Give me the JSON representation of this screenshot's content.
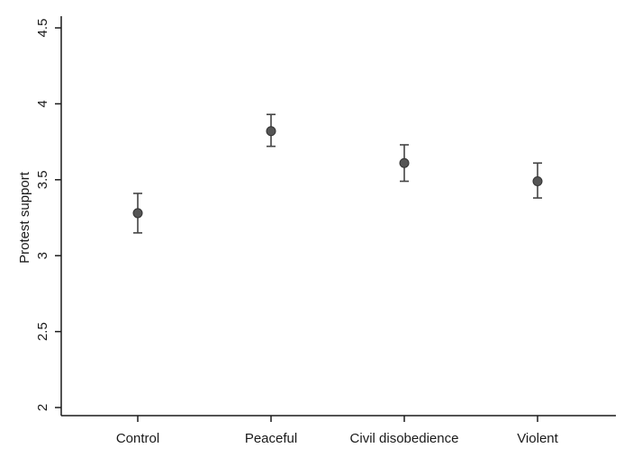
{
  "chart_data": {
    "type": "scatter",
    "title": "",
    "xlabel": "",
    "ylabel": "Protest support",
    "ylim": [
      2,
      4.5
    ],
    "yticks": [
      2,
      2.5,
      3,
      3.5,
      4,
      4.5
    ],
    "ytick_labels": [
      "2",
      "2.5",
      "3",
      "3.5",
      "4",
      "4.5"
    ],
    "categories": [
      "Control",
      "Peaceful",
      "Civil disobedience",
      "Violent"
    ],
    "series": [
      {
        "values": [
          3.28,
          3.82,
          3.61,
          3.49
        ],
        "error_low": [
          3.15,
          3.72,
          3.49,
          3.38
        ],
        "error_high": [
          3.41,
          3.93,
          3.73,
          3.61
        ]
      }
    ],
    "grid": false,
    "legend": "none",
    "colors": {
      "marker": "#555555",
      "marker_edge": "#333333",
      "errorbar": "#444444",
      "axis": "#1a1a1a"
    }
  }
}
